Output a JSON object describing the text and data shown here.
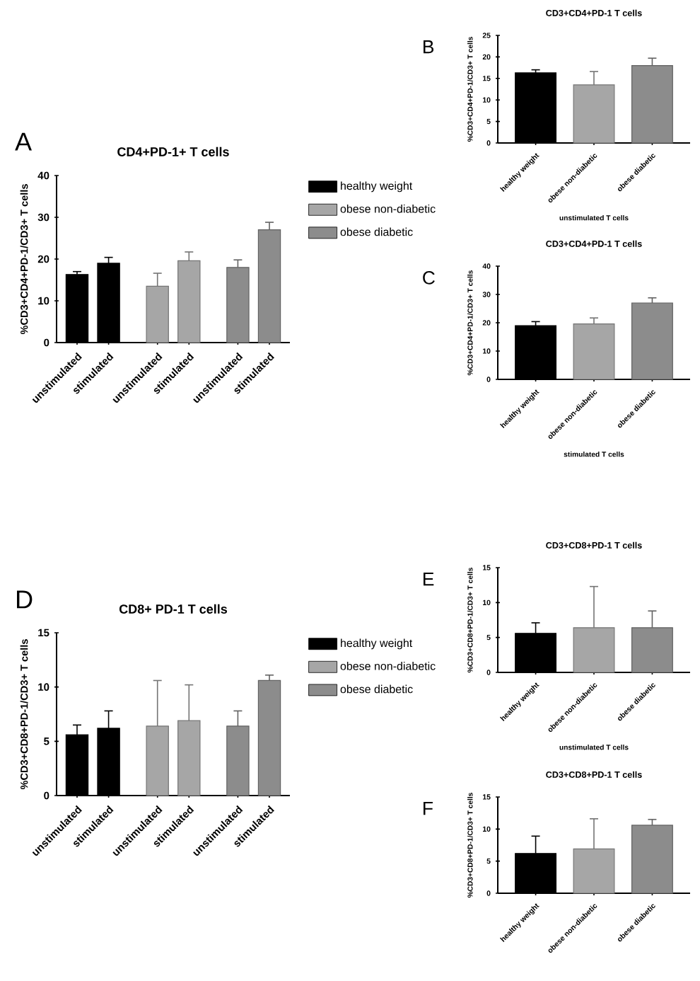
{
  "chart_data": [
    {
      "type": "bar",
      "title": "CD4+PD-1+ T cells",
      "ylabel": "%CD3+CD4+PD-1/CD3+ T cells",
      "annotations": [
        "A"
      ],
      "categories": [
        "unstimulated",
        "stimulated",
        "unstimulated",
        "stimulated",
        "unstimulated",
        "stimulated"
      ],
      "series": [
        {
          "name": "healthy weight",
          "color": "#000000",
          "values": [
            16.3,
            19.0,
            null,
            null,
            null,
            null
          ],
          "errors": [
            0.7,
            1.4,
            null,
            null,
            null,
            null
          ]
        },
        {
          "name": "obese non-diabetic",
          "color": "#a6a6a6",
          "values": [
            null,
            null,
            13.5,
            19.6,
            null,
            null
          ],
          "errors": [
            null,
            null,
            3.1,
            2.1,
            null,
            null
          ]
        },
        {
          "name": "obese diabetic",
          "color": "#8c8c8c",
          "values": [
            null,
            null,
            null,
            null,
            18.0,
            27.0
          ],
          "errors": [
            null,
            null,
            null,
            null,
            1.8,
            1.8
          ]
        }
      ],
      "ylim": [
        0,
        40
      ],
      "yticks": [
        0,
        10,
        20,
        30,
        40
      ],
      "legend": "right"
    },
    {
      "type": "bar",
      "title": "CD3+CD4+PD-1 T cells",
      "ylabel": "%CD3+CD4+PD-1/CD3+ T cells",
      "xlabel": "unstimulated T cells",
      "annotations": [
        "B"
      ],
      "categories": [
        "healthy weight",
        "obese non-diabetic",
        "obese diabetic"
      ],
      "values": [
        16.3,
        13.5,
        18.0
      ],
      "errors": [
        0.7,
        3.1,
        1.7
      ],
      "colors": [
        "#000000",
        "#a6a6a6",
        "#8c8c8c"
      ],
      "ylim": [
        0,
        25
      ],
      "yticks": [
        0,
        5,
        10,
        15,
        20,
        25
      ]
    },
    {
      "type": "bar",
      "title": "CD3+CD4+PD-1 T cells",
      "ylabel": "%CD3+CD4+PD-1/CD3+ T cells",
      "xlabel": "stimulated T cells",
      "annotations": [
        "C"
      ],
      "categories": [
        "healthy weight",
        "obese non-diabetic",
        "obese diabetic"
      ],
      "values": [
        19.0,
        19.6,
        27.0
      ],
      "errors": [
        1.4,
        2.1,
        1.8
      ],
      "colors": [
        "#000000",
        "#a6a6a6",
        "#8c8c8c"
      ],
      "ylim": [
        0,
        40
      ],
      "yticks": [
        0,
        10,
        20,
        30,
        40
      ]
    },
    {
      "type": "bar",
      "title": "CD8+ PD-1 T cells",
      "ylabel": "%CD3+CD8+PD-1/CD3+ T cells",
      "annotations": [
        "D"
      ],
      "categories": [
        "unstimulated",
        "stimulated",
        "unstimulated",
        "stimulated",
        "unstimulated",
        "stimulated"
      ],
      "series": [
        {
          "name": "healthy weight",
          "color": "#000000",
          "values": [
            5.6,
            6.2,
            null,
            null,
            null,
            null
          ],
          "errors": [
            0.9,
            1.6,
            null,
            null,
            null,
            null
          ]
        },
        {
          "name": "obese non-diabetic",
          "color": "#a6a6a6",
          "values": [
            null,
            null,
            6.4,
            6.9,
            null,
            null
          ],
          "errors": [
            null,
            null,
            4.2,
            3.3,
            null,
            null
          ]
        },
        {
          "name": "obese diabetic",
          "color": "#8c8c8c",
          "values": [
            null,
            null,
            null,
            null,
            6.4,
            10.6
          ],
          "errors": [
            null,
            null,
            null,
            null,
            1.4,
            0.5
          ]
        }
      ],
      "ylim": [
        0,
        15
      ],
      "yticks": [
        0,
        5,
        10,
        15
      ],
      "legend": "right"
    },
    {
      "type": "bar",
      "title": "CD3+CD8+PD-1 T cells",
      "ylabel": "%CD3+CD8+PD-1/CD3+ T cells",
      "xlabel": "unstimulated T cells",
      "annotations": [
        "E"
      ],
      "categories": [
        "healthy weight",
        "obese non-diabetic",
        "obese diabetic"
      ],
      "values": [
        5.6,
        6.4,
        6.4
      ],
      "errors": [
        1.5,
        5.9,
        2.4
      ],
      "colors": [
        "#000000",
        "#a6a6a6",
        "#8c8c8c"
      ],
      "ylim": [
        0,
        15
      ],
      "yticks": [
        0,
        5,
        10,
        15
      ]
    },
    {
      "type": "bar",
      "title": "CD3+CD8+PD-1 T cells",
      "ylabel": "%CD3+CD8+PD-1/CD3+ T cells",
      "annotations": [
        "F"
      ],
      "categories": [
        "healthy weight",
        "obese non-diabetic",
        "obese diabetic"
      ],
      "values": [
        6.2,
        6.9,
        10.6
      ],
      "errors": [
        2.7,
        4.7,
        0.9
      ],
      "colors": [
        "#000000",
        "#a6a6a6",
        "#8c8c8c"
      ],
      "ylim": [
        0,
        15
      ],
      "yticks": [
        0,
        5,
        10,
        15
      ]
    }
  ]
}
